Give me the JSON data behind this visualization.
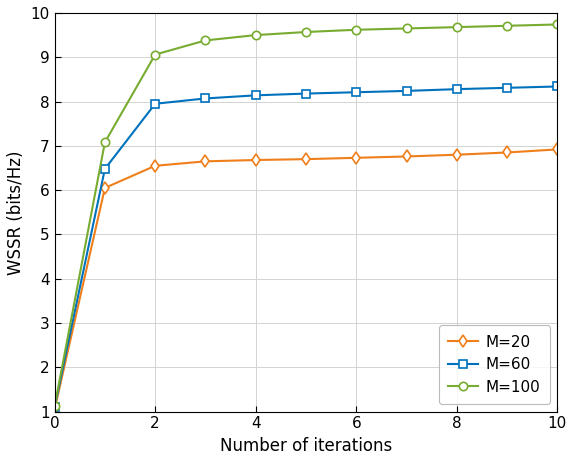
{
  "x": [
    0,
    1,
    2,
    3,
    4,
    5,
    6,
    7,
    8,
    9,
    10
  ],
  "m20": [
    1.05,
    6.05,
    6.55,
    6.65,
    6.68,
    6.7,
    6.73,
    6.76,
    6.8,
    6.85,
    6.92
  ],
  "m60": [
    1.1,
    6.48,
    7.95,
    8.07,
    8.14,
    8.18,
    8.21,
    8.24,
    8.28,
    8.31,
    8.34
  ],
  "m100": [
    1.12,
    7.08,
    9.06,
    9.38,
    9.5,
    9.57,
    9.62,
    9.65,
    9.68,
    9.71,
    9.74
  ],
  "color_m20": "#EF7F1A",
  "color_m60": "#0072BD",
  "color_m100": "#77AC30",
  "xlabel": "Number of iterations",
  "ylabel": "WSSR (bits/Hz)",
  "xlim": [
    0,
    10
  ],
  "ylim": [
    1,
    10
  ],
  "yticks": [
    1,
    2,
    3,
    4,
    5,
    6,
    7,
    8,
    9,
    10
  ],
  "xticks": [
    0,
    2,
    4,
    6,
    8,
    10
  ],
  "legend_labels": [
    "M=20",
    "M=60",
    "M=100"
  ],
  "bg_color": "#FFFFFF",
  "grid_color": "#D3D3D3",
  "marker_size": 6,
  "linewidth": 1.5,
  "font_size": 11,
  "label_font_size": 12
}
